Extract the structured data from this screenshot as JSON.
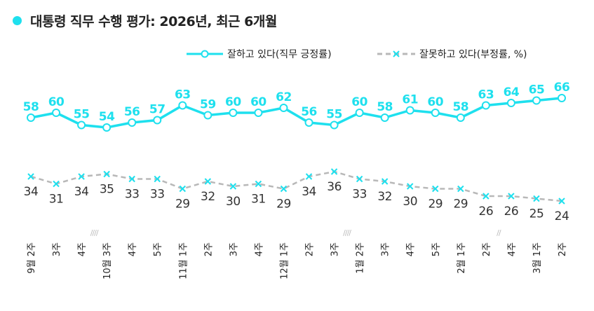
{
  "title": "대통령 직무 수행 평가: 2026년, 최근 6개월",
  "colors": {
    "approve": "#1ee0ee",
    "disapprove": "#b8b8b8",
    "disapprove_marker": "#1ee0ee"
  },
  "chart_data": {
    "type": "line",
    "title": "대통령 직무 수행 평가: 2026년, 최근 6개월",
    "legend_position": "top-right",
    "grid": false,
    "categories": [
      "9월 2주",
      "3주",
      "4주",
      "10월 3주",
      "4주",
      "5주",
      "11월 1주",
      "2주",
      "3주",
      "4주",
      "12월 1주",
      "2주",
      "3주",
      "1월 2주",
      "3주",
      "4주",
      "5주",
      "2월 1주",
      "2주",
      "4주",
      "3월 1주",
      "2주"
    ],
    "x_label_parts": [
      {
        "month": "9월",
        "week": "2주"
      },
      {
        "month": "",
        "week": "3주"
      },
      {
        "month": "",
        "week": "4주"
      },
      {
        "month": "10월",
        "week": "3주"
      },
      {
        "month": "",
        "week": "4주"
      },
      {
        "month": "",
        "week": "5주"
      },
      {
        "month": "11월",
        "week": "1주"
      },
      {
        "month": "",
        "week": "2주"
      },
      {
        "month": "",
        "week": "3주"
      },
      {
        "month": "",
        "week": "4주"
      },
      {
        "month": "12월",
        "week": "1주"
      },
      {
        "month": "",
        "week": "2주"
      },
      {
        "month": "",
        "week": "3주"
      },
      {
        "month": "1월",
        "week": "2주"
      },
      {
        "month": "",
        "week": "3주"
      },
      {
        "month": "",
        "week": "4주"
      },
      {
        "month": "",
        "week": "5주"
      },
      {
        "month": "2월",
        "week": "1주"
      },
      {
        "month": "",
        "week": "2주"
      },
      {
        "month": "",
        "week": "4주"
      },
      {
        "month": "3월",
        "week": "1주"
      },
      {
        "month": "",
        "week": "2주"
      }
    ],
    "axis_breaks": [
      {
        "after_index": 2,
        "text": "////"
      },
      {
        "after_index": 12,
        "text": "////"
      },
      {
        "after_index": 18,
        "text": "//"
      }
    ],
    "series": [
      {
        "name": "잘하고 있다(직무 긍정률)",
        "style": "solid-circle",
        "values": [
          58,
          60,
          55,
          54,
          56,
          57,
          63,
          59,
          60,
          60,
          62,
          56,
          55,
          60,
          58,
          61,
          60,
          58,
          63,
          64,
          65,
          66
        ]
      },
      {
        "name": "잘못하고 있다(부정률, %)",
        "style": "dashed-x",
        "values": [
          34,
          31,
          34,
          35,
          33,
          33,
          29,
          32,
          30,
          31,
          29,
          34,
          36,
          33,
          32,
          30,
          29,
          29,
          26,
          26,
          25,
          24
        ]
      }
    ]
  }
}
